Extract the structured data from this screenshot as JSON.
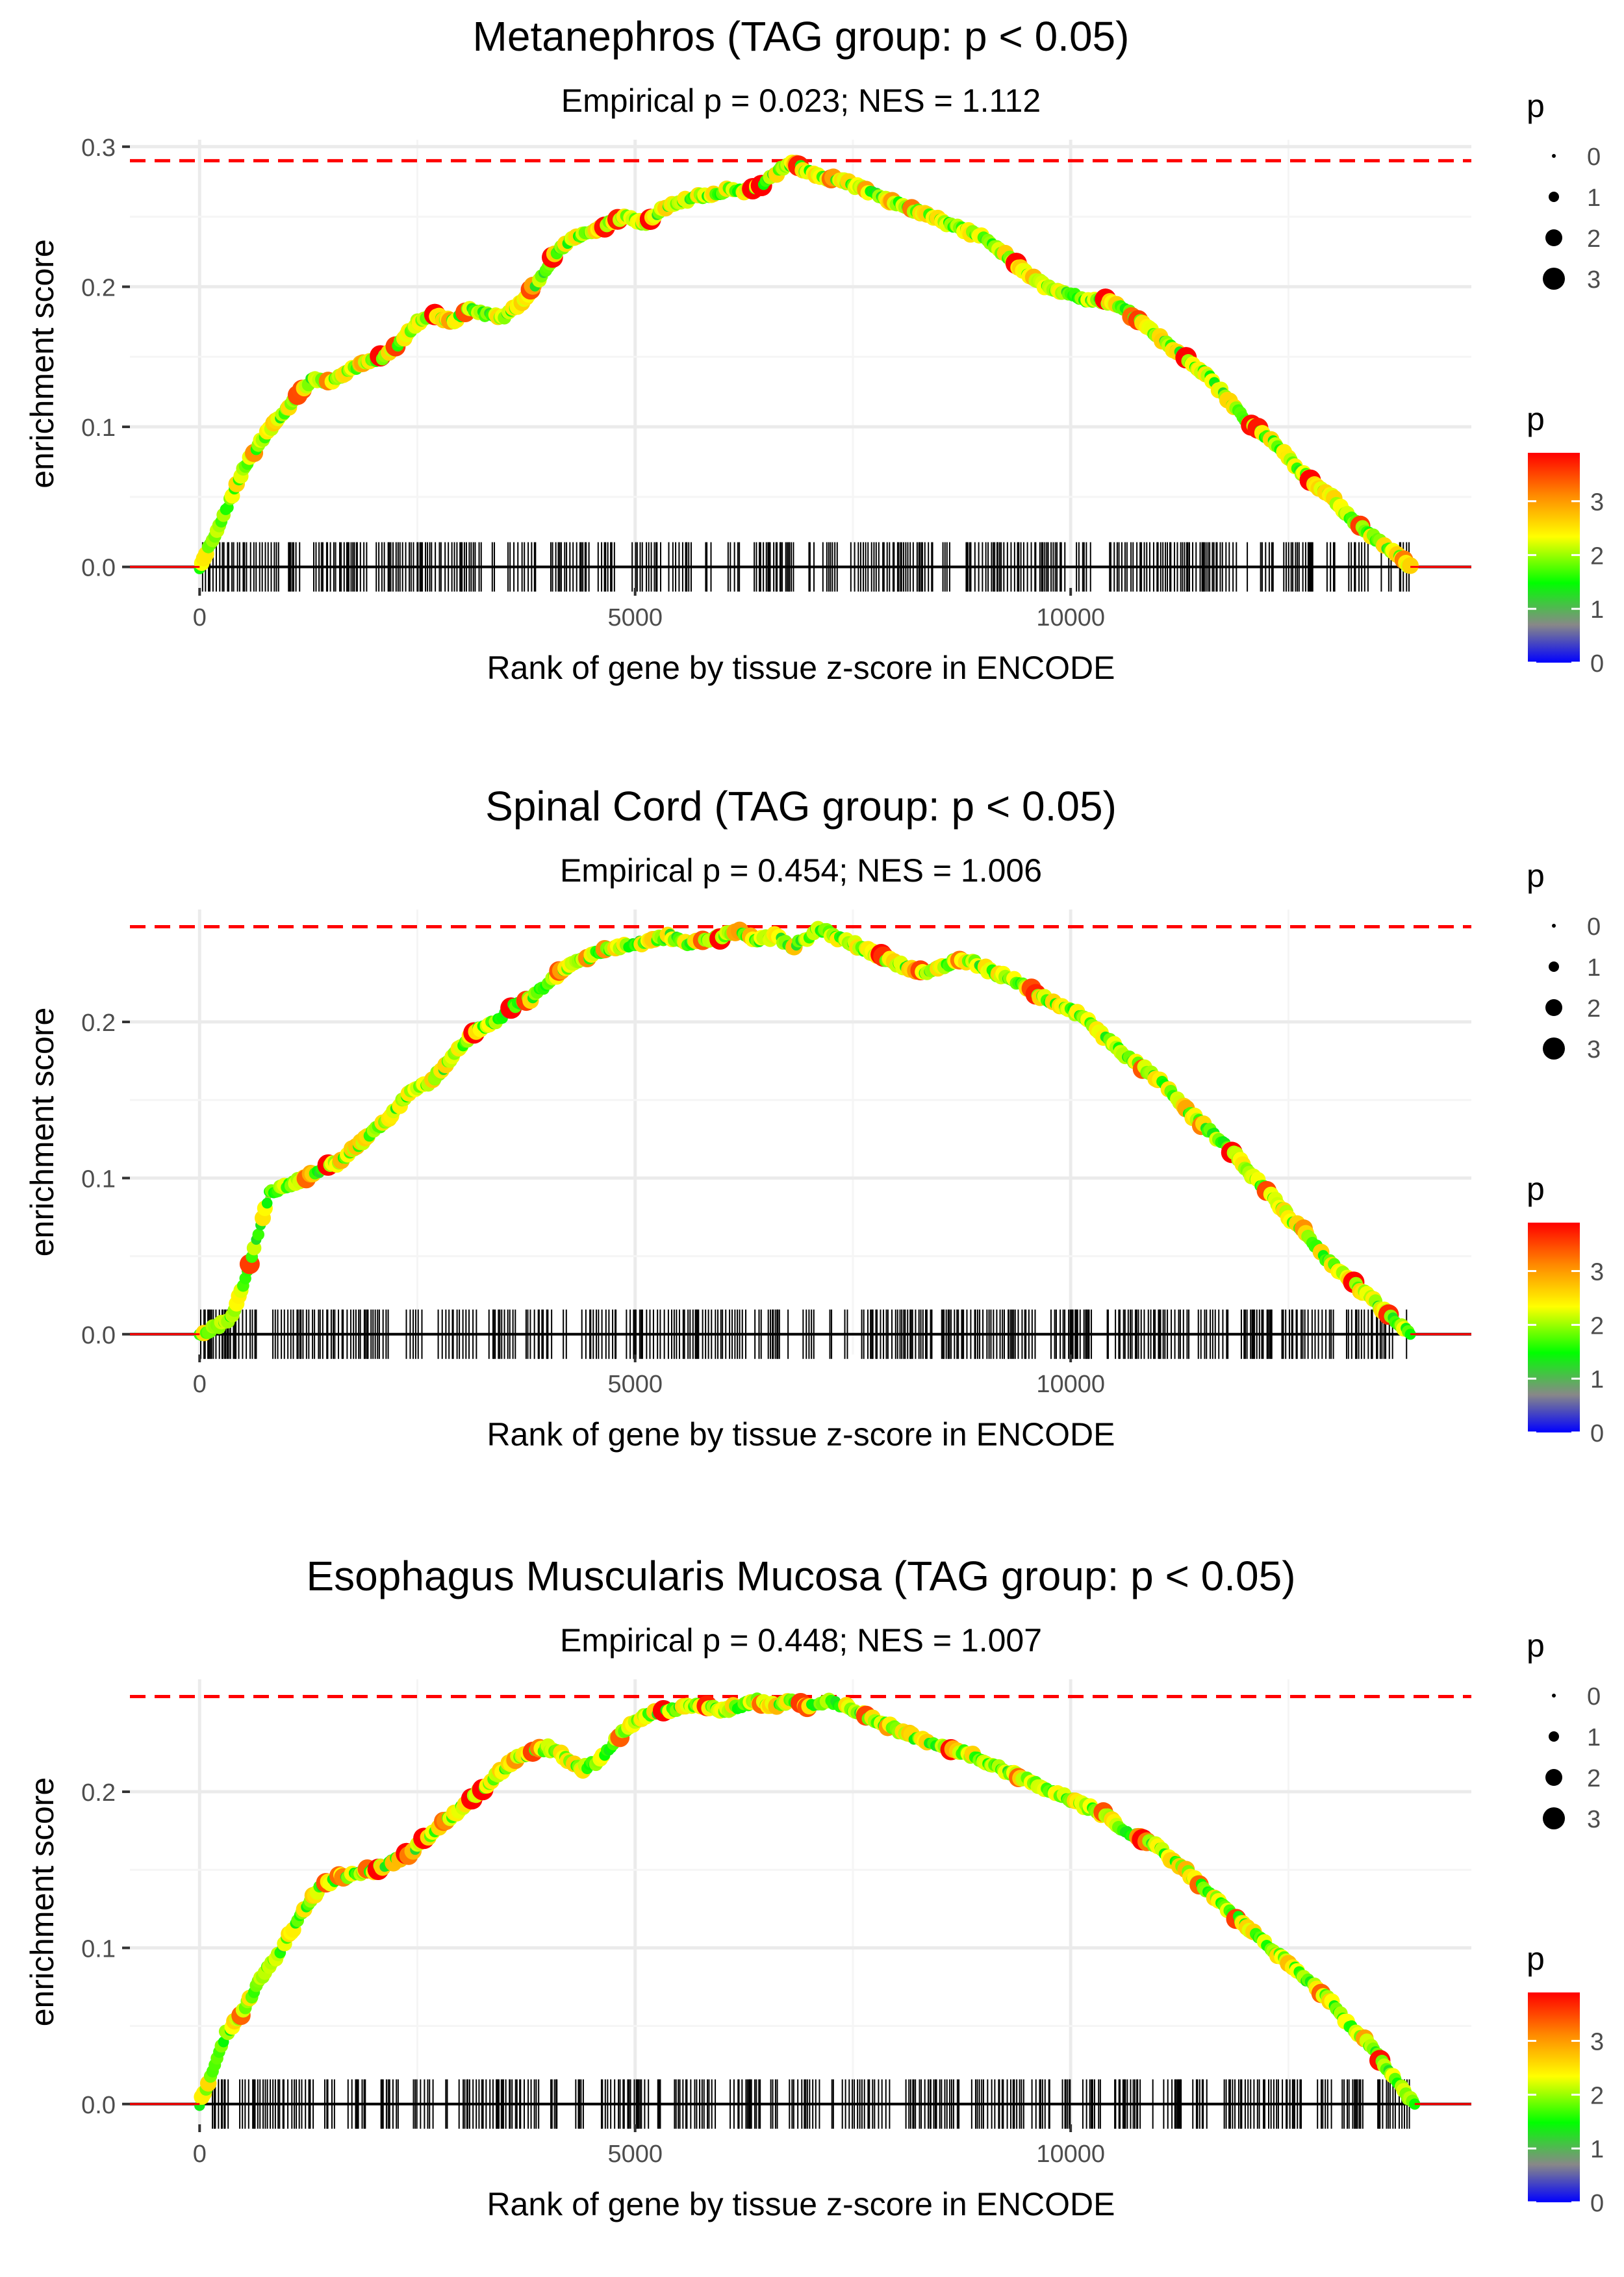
{
  "chart_data": [
    {
      "type": "line",
      "title": "Metanephros (TAG group: p < 0.05)",
      "subtitle": "Empirical p = 0.023; NES = 1.112",
      "xlabel": "Rank of gene by tissue z-score in ENCODE",
      "ylabel": "enrichment score",
      "xlim": [
        -800,
        14600
      ],
      "ylim": [
        -0.015,
        0.305
      ],
      "xticks": [
        0,
        5000,
        10000
      ],
      "xtick_labels": [
        "0",
        "5000",
        "10000"
      ],
      "yticks": [
        0.0,
        0.1,
        0.2,
        0.3
      ],
      "ytick_labels": [
        "0.0",
        "0.1",
        "0.2",
        "0.3"
      ],
      "max_es": 0.29,
      "peak_rank": 6800,
      "curve": {
        "x": [
          0,
          150,
          300,
          500,
          700,
          900,
          1100,
          1300,
          1500,
          1700,
          1900,
          2100,
          2300,
          2500,
          2700,
          2900,
          3100,
          3300,
          3500,
          3700,
          3900,
          4100,
          4300,
          4500,
          4700,
          4900,
          5100,
          5300,
          5500,
          5700,
          5900,
          6100,
          6300,
          6500,
          6700,
          6800,
          7000,
          7200,
          7400,
          7600,
          7800,
          8000,
          8200,
          8400,
          8600,
          8800,
          9000,
          9200,
          9400,
          9600,
          9800,
          10000,
          10200,
          10400,
          10600,
          10800,
          11000,
          11200,
          11400,
          11600,
          11800,
          12000,
          12200,
          12400,
          12600,
          12800,
          13000,
          13200,
          13400,
          13600,
          13750,
          13900
        ],
        "y": [
          0.0,
          0.02,
          0.04,
          0.07,
          0.09,
          0.105,
          0.12,
          0.135,
          0.132,
          0.14,
          0.145,
          0.15,
          0.16,
          0.175,
          0.18,
          0.175,
          0.185,
          0.18,
          0.178,
          0.19,
          0.205,
          0.225,
          0.235,
          0.24,
          0.245,
          0.25,
          0.245,
          0.255,
          0.26,
          0.265,
          0.265,
          0.27,
          0.268,
          0.275,
          0.285,
          0.288,
          0.282,
          0.278,
          0.275,
          0.27,
          0.265,
          0.26,
          0.255,
          0.25,
          0.245,
          0.24,
          0.235,
          0.225,
          0.215,
          0.205,
          0.197,
          0.195,
          0.19,
          0.19,
          0.185,
          0.175,
          0.165,
          0.155,
          0.145,
          0.135,
          0.12,
          0.105,
          0.095,
          0.085,
          0.07,
          0.06,
          0.05,
          0.035,
          0.025,
          0.015,
          0.008,
          0.0
        ]
      }
    },
    {
      "type": "line",
      "title": "Spinal Cord (TAG group: p < 0.05)",
      "subtitle": "Empirical p = 0.454; NES = 1.006",
      "xlabel": "Rank of gene by tissue z-score in ENCODE",
      "ylabel": "enrichment score",
      "xlim": [
        -800,
        14600
      ],
      "ylim": [
        -0.013,
        0.272
      ],
      "xticks": [
        0,
        5000,
        10000
      ],
      "xtick_labels": [
        "0",
        "5000",
        "10000"
      ],
      "yticks": [
        0.0,
        0.1,
        0.2
      ],
      "ytick_labels": [
        "0.0",
        "0.1",
        "0.2"
      ],
      "max_es": 0.261,
      "peak_rank": 7100,
      "curve": {
        "x": [
          0,
          200,
          350,
          500,
          650,
          800,
          1000,
          1200,
          1400,
          1600,
          1800,
          2000,
          2200,
          2400,
          2600,
          2800,
          3000,
          3200,
          3400,
          3600,
          3800,
          4000,
          4200,
          4400,
          4600,
          4800,
          5000,
          5200,
          5400,
          5600,
          5800,
          6000,
          6200,
          6400,
          6600,
          6800,
          7000,
          7100,
          7300,
          7500,
          7700,
          7900,
          8100,
          8300,
          8500,
          8700,
          8900,
          9100,
          9300,
          9500,
          9700,
          9900,
          10100,
          10300,
          10500,
          10700,
          10900,
          11100,
          11300,
          11500,
          11700,
          11900,
          12100,
          12300,
          12500,
          12700,
          12900,
          13100,
          13300,
          13500,
          13700,
          13900
        ],
        "y": [
          0.0,
          0.005,
          0.01,
          0.03,
          0.06,
          0.09,
          0.095,
          0.1,
          0.105,
          0.11,
          0.12,
          0.13,
          0.14,
          0.155,
          0.16,
          0.17,
          0.185,
          0.195,
          0.2,
          0.21,
          0.215,
          0.225,
          0.235,
          0.24,
          0.245,
          0.248,
          0.25,
          0.252,
          0.255,
          0.25,
          0.252,
          0.255,
          0.258,
          0.252,
          0.255,
          0.248,
          0.255,
          0.26,
          0.255,
          0.25,
          0.245,
          0.24,
          0.235,
          0.232,
          0.235,
          0.24,
          0.238,
          0.232,
          0.228,
          0.222,
          0.215,
          0.21,
          0.205,
          0.195,
          0.185,
          0.175,
          0.168,
          0.158,
          0.145,
          0.135,
          0.125,
          0.115,
          0.1,
          0.09,
          0.075,
          0.065,
          0.05,
          0.04,
          0.03,
          0.02,
          0.01,
          0.0
        ]
      }
    },
    {
      "type": "line",
      "title": "Esophagus Muscularis Mucosa (TAG group: p < 0.05)",
      "subtitle": "Empirical p = 0.448; NES = 1.007",
      "xlabel": "Rank of gene by tissue z-score in ENCODE",
      "ylabel": "enrichment score",
      "xlim": [
        -800,
        14600
      ],
      "ylim": [
        -0.013,
        0.272
      ],
      "xticks": [
        0,
        5000,
        10000
      ],
      "xtick_labels": [
        "0",
        "5000",
        "10000"
      ],
      "yticks": [
        0.0,
        0.1,
        0.2
      ],
      "ytick_labels": [
        "0.0",
        "0.1",
        "0.2"
      ],
      "max_es": 0.261,
      "peak_rank": 7200,
      "curve": {
        "x": [
          0,
          150,
          300,
          450,
          600,
          750,
          900,
          1050,
          1200,
          1400,
          1600,
          1800,
          2000,
          2200,
          2400,
          2600,
          2800,
          3000,
          3200,
          3400,
          3600,
          3800,
          4000,
          4200,
          4400,
          4600,
          4800,
          5000,
          5200,
          5400,
          5600,
          5800,
          6000,
          6200,
          6400,
          6600,
          6800,
          7000,
          7200,
          7400,
          7600,
          7800,
          8000,
          8200,
          8400,
          8600,
          8800,
          9000,
          9200,
          9400,
          9600,
          9800,
          10000,
          10200,
          10400,
          10600,
          10800,
          11000,
          11200,
          11400,
          11600,
          11800,
          12000,
          12200,
          12400,
          12600,
          12800,
          13000,
          13200,
          13400,
          13600,
          13800,
          13950
        ],
        "y": [
          0.0,
          0.02,
          0.045,
          0.055,
          0.07,
          0.085,
          0.095,
          0.11,
          0.125,
          0.14,
          0.145,
          0.148,
          0.15,
          0.155,
          0.16,
          0.17,
          0.18,
          0.19,
          0.2,
          0.21,
          0.22,
          0.225,
          0.228,
          0.222,
          0.215,
          0.22,
          0.235,
          0.245,
          0.25,
          0.252,
          0.255,
          0.255,
          0.252,
          0.255,
          0.258,
          0.255,
          0.258,
          0.255,
          0.258,
          0.255,
          0.25,
          0.245,
          0.24,
          0.235,
          0.23,
          0.228,
          0.225,
          0.22,
          0.215,
          0.21,
          0.205,
          0.2,
          0.195,
          0.19,
          0.185,
          0.175,
          0.17,
          0.165,
          0.155,
          0.145,
          0.135,
          0.125,
          0.115,
          0.105,
          0.095,
          0.085,
          0.075,
          0.065,
          0.05,
          0.04,
          0.025,
          0.01,
          0.0
        ]
      }
    }
  ],
  "legend": {
    "size_title": "p",
    "size_labels": [
      "0",
      "1",
      "2",
      "3"
    ],
    "color_title": "p",
    "color_labels": [
      "3",
      "2",
      "1",
      "0"
    ],
    "color_stops": [
      "#ff0000",
      "#ff8800",
      "#ffff00",
      "#00ff00",
      "#888888",
      "#0000ff"
    ]
  },
  "colors": {
    "threshold_line": "#ff0000",
    "grid": "#ebebeb",
    "axis_text": "#4d4d4d",
    "ticks_marks": "#000000"
  }
}
